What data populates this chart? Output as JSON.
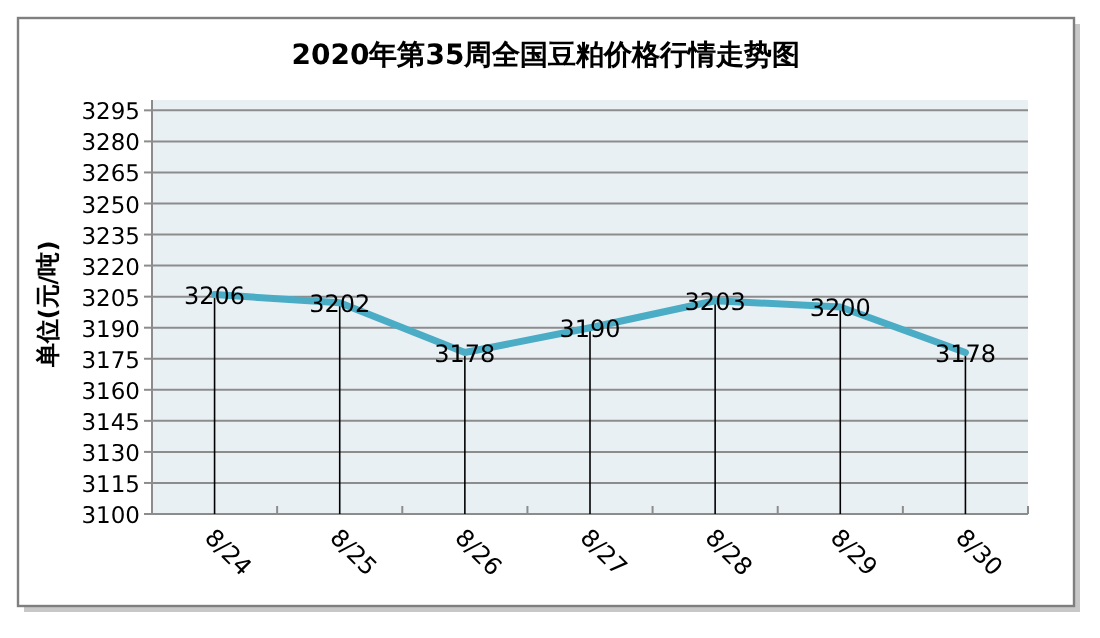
{
  "chart_data": {
    "type": "line",
    "title": "2020年第35周全国豆粕价格行情走势图",
    "ylabel": "单位(元/吨)",
    "categories": [
      "8/24",
      "8/25",
      "8/26",
      "8/27",
      "8/28",
      "8/29",
      "8/30"
    ],
    "values": [
      3206,
      3202,
      3178,
      3190,
      3203,
      3200,
      3178
    ],
    "color": "#4bacc6",
    "ylim": [
      3100,
      3300
    ],
    "yticks": [
      3100,
      3115,
      3130,
      3145,
      3160,
      3175,
      3190,
      3205,
      3220,
      3235,
      3250,
      3265,
      3280,
      3295
    ],
    "grid": "y",
    "data_labels": true
  }
}
